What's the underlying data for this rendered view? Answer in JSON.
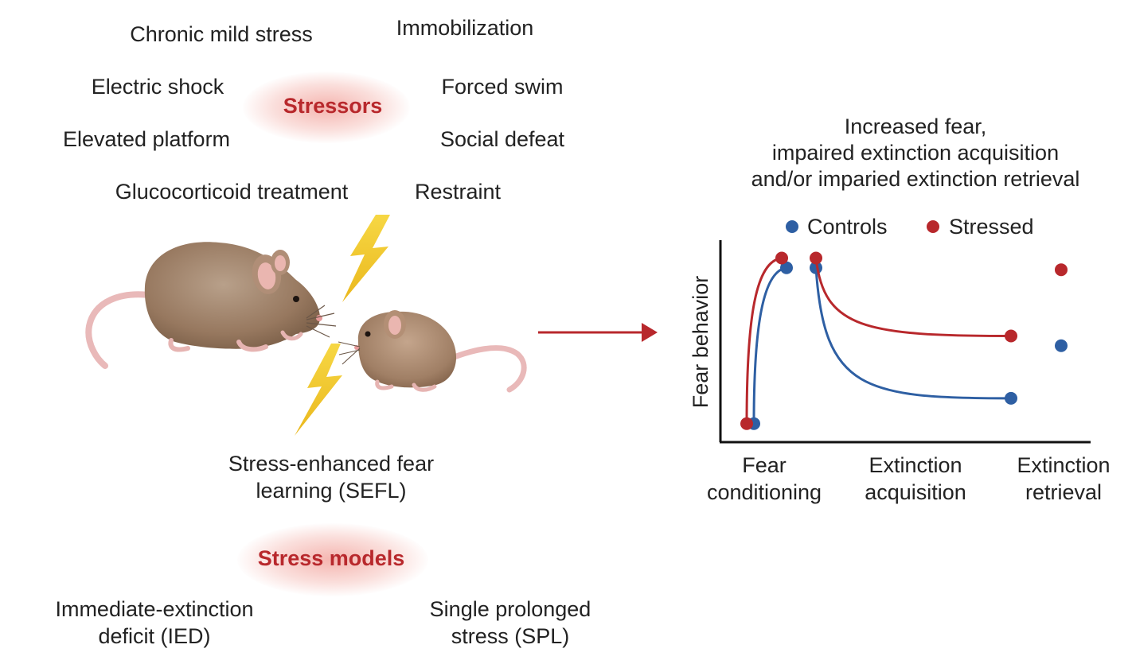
{
  "stressors": {
    "title": "Stressors",
    "items": [
      "Chronic mild stress",
      "Immobilization",
      "Electric shock",
      "Forced swim",
      "Elevated platform",
      "Social defeat",
      "Glucocorticoid treatment",
      "Restraint"
    ]
  },
  "sefl_label": [
    "Stress-enhanced fear",
    "learning (SEFL)"
  ],
  "models": {
    "title": "Stress models",
    "items": [
      [
        "Immediate-extinction",
        "deficit (IED)"
      ],
      [
        "Single prolonged",
        "stress (SPL)"
      ]
    ]
  },
  "chart_data": {
    "type": "line",
    "title": [
      "Increased fear,",
      "impaired extinction acquisition",
      "and/or imparied extinction retrieval"
    ],
    "ylabel": "Fear behavior",
    "xlabel": "",
    "phases": [
      [
        "Fear",
        "conditioning"
      ],
      [
        "Extinction",
        "acquisition"
      ],
      [
        "Extinction",
        "retrieval"
      ]
    ],
    "legend": {
      "position": "top"
    },
    "series": [
      {
        "name": "Controls",
        "color": "#2e5fa3",
        "conditioning": [
          0.05,
          0.85
        ],
        "acquisition": [
          0.85,
          0.18
        ],
        "retrieval": 0.45
      },
      {
        "name": "Stressed",
        "color": "#b8282c",
        "conditioning": [
          0.05,
          0.9
        ],
        "acquisition": [
          0.9,
          0.5
        ],
        "retrieval": 0.84
      }
    ],
    "ylim": [
      0,
      1
    ],
    "grid": false
  },
  "colors": {
    "accent": "#b8282c",
    "controls": "#2e5fa3",
    "arrow": "#b8282c",
    "bolt": "#f2c51c"
  }
}
